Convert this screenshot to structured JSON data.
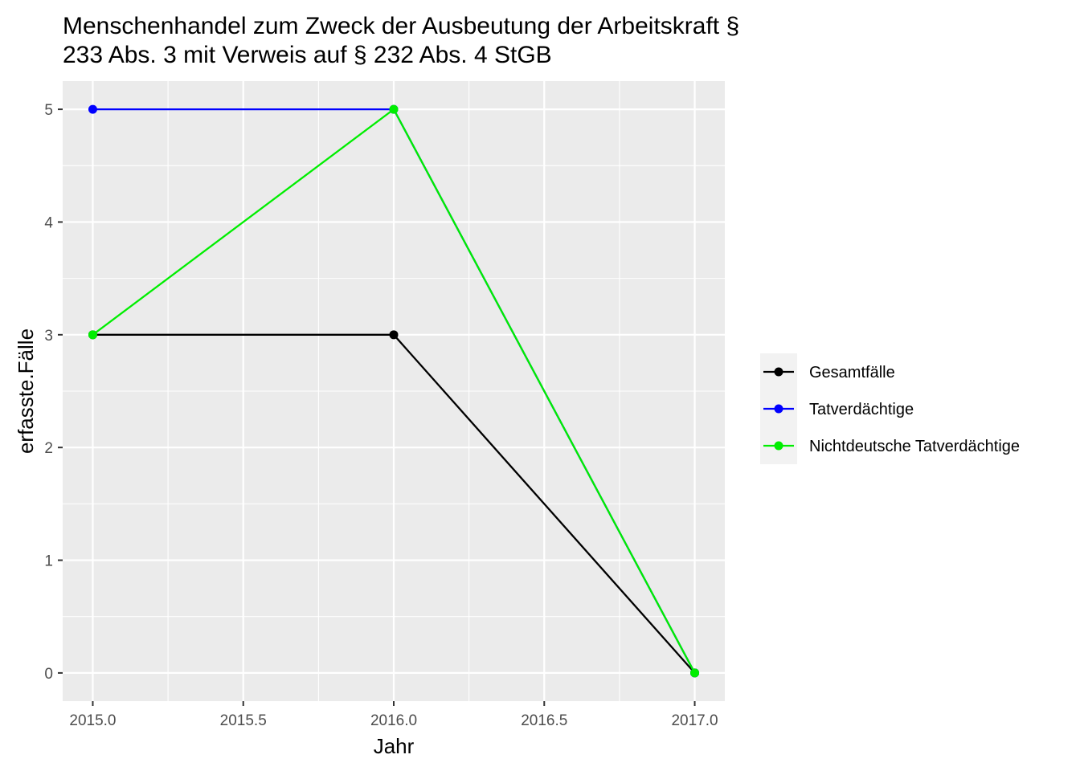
{
  "chart_data": {
    "type": "line",
    "title_lines": [
      "Menschenhandel zum Zweck der Ausbeutung der Arbeitskraft §",
      "233 Abs. 3 mit Verweis auf § 232 Abs. 4 StGB"
    ],
    "xlabel": "Jahr",
    "ylabel": "erfasste.Fälle",
    "x": [
      2015,
      2016,
      2017
    ],
    "xlim": [
      2014.9,
      2017.1
    ],
    "ylim": [
      -0.25,
      5.25
    ],
    "x_ticks": [
      "2015.0",
      "2015.5",
      "2016.0",
      "2016.5",
      "2017.0"
    ],
    "y_ticks": [
      "0",
      "1",
      "2",
      "3",
      "4",
      "5"
    ],
    "grid": true,
    "legend_position": "right",
    "series": [
      {
        "name": "Gesamtfälle",
        "color": "#000000",
        "values": [
          3,
          3,
          0
        ]
      },
      {
        "name": "Tatverdächtige",
        "color": "#0000ff",
        "values": [
          5,
          5,
          0
        ]
      },
      {
        "name": "Nichtdeutsche Tatverdächtige",
        "color": "#00ee00",
        "values": [
          3,
          5,
          0
        ]
      }
    ]
  }
}
